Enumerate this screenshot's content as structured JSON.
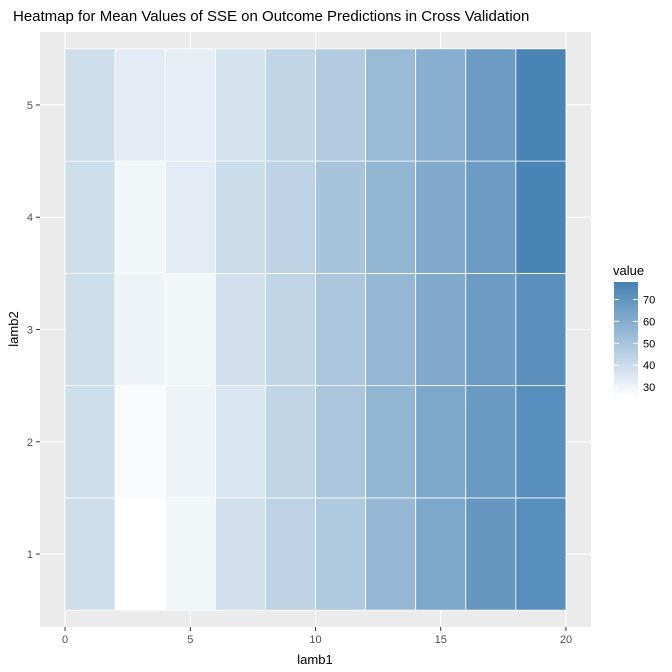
{
  "chart_data": {
    "type": "heatmap",
    "title": "Heatmap for Mean Values of SSE on Outcome Predictions in Cross Validation",
    "xlabel": "lamb1",
    "ylabel": "lamb2",
    "x": [
      1,
      3,
      5,
      7,
      9,
      11,
      13,
      15,
      17,
      19
    ],
    "y": [
      1,
      2,
      3,
      4,
      5
    ],
    "xlim": [
      -1,
      21
    ],
    "ylim": [
      0.35,
      5.65
    ],
    "x_ticks": [
      "0",
      "5",
      "10",
      "15",
      "20"
    ],
    "y_ticks": [
      "1",
      "2",
      "3",
      "4",
      "5"
    ],
    "values": [
      [
        39,
        25,
        29,
        38,
        44,
        48,
        55,
        62,
        69,
        73
      ],
      [
        39,
        27,
        30,
        36,
        43,
        49,
        56,
        62,
        68,
        73
      ],
      [
        39,
        30,
        29,
        38,
        43,
        49,
        55,
        61,
        67,
        72
      ],
      [
        39,
        29,
        33,
        40,
        44,
        50,
        56,
        61,
        67,
        77
      ],
      [
        39,
        33,
        32,
        37,
        43,
        47,
        54,
        59,
        67,
        77
      ]
    ],
    "legend": {
      "title": "value",
      "breaks": [
        "70",
        "60",
        "50",
        "40",
        "30"
      ],
      "break_values": [
        70,
        60,
        50,
        40,
        30
      ],
      "min": 25,
      "max": 78,
      "low_color": "#ffffff",
      "high_color": "#4682b4"
    },
    "grid": true,
    "legend_position": "right",
    "panel_background": "#ebebeb"
  }
}
